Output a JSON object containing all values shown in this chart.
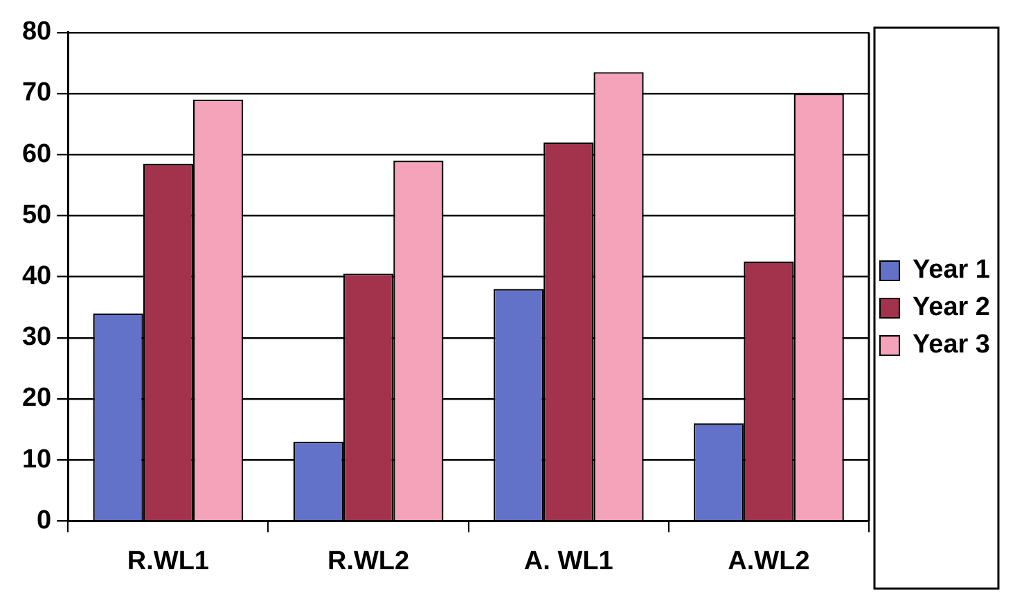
{
  "chart_data": {
    "type": "bar",
    "categories": [
      "R.WL1",
      "R.WL2",
      "A. WL1",
      "A.WL2"
    ],
    "series": [
      {
        "name": "Year 1",
        "color": "#6272c8",
        "values": [
          34,
          13,
          38,
          16
        ]
      },
      {
        "name": "Year 2",
        "color": "#a3334d",
        "values": [
          58.5,
          40.5,
          62,
          42.5
        ]
      },
      {
        "name": "Year 3",
        "color": "#f5a3ba",
        "values": [
          69,
          59,
          73.5,
          70
        ]
      }
    ],
    "ylim": [
      0,
      80
    ],
    "yticks": [
      0,
      10,
      20,
      30,
      40,
      50,
      60,
      70,
      80
    ],
    "grid": "y",
    "legend": "right"
  }
}
